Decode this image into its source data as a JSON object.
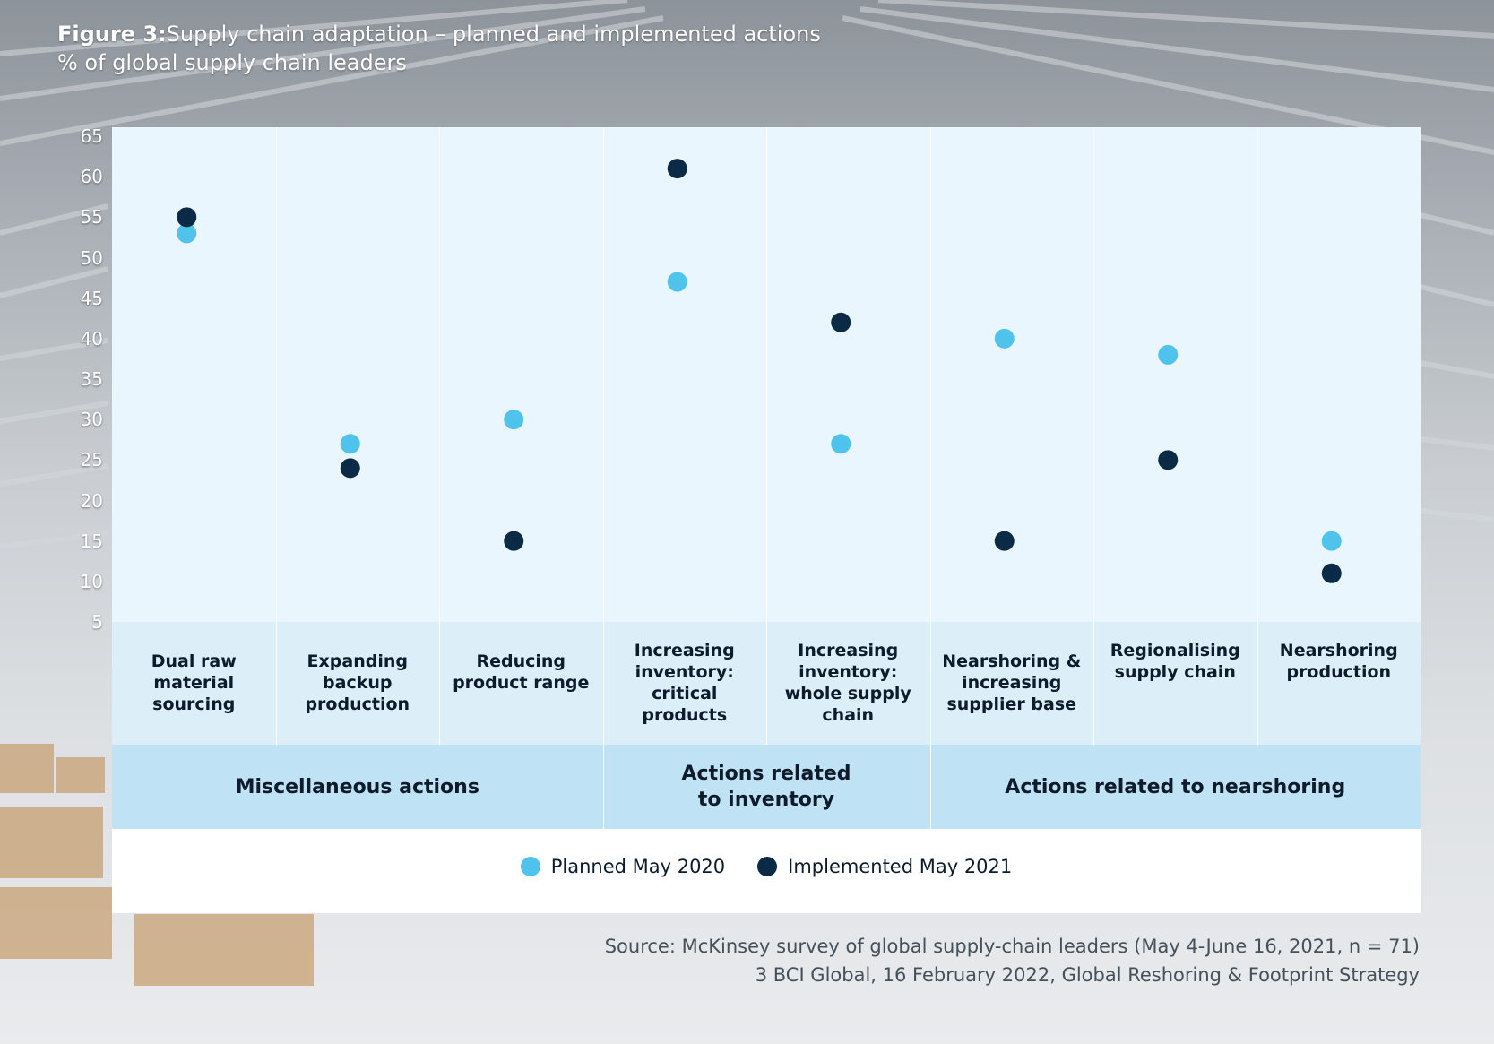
{
  "figure": {
    "label": "Figure 3:",
    "title": "Supply chain adaptation – planned and implemented actions",
    "subtitle": "% of global supply chain leaders"
  },
  "colors": {
    "planned": "#4fc3ec",
    "implemented": "#0b2a45",
    "plot_bg": "#eaf6fd",
    "label_bg": "#dceff9",
    "group_bg": "#bfe3f5"
  },
  "chart_data": {
    "type": "scatter",
    "title": "Supply chain adaptation – planned and implemented actions",
    "ylabel": "% of global supply chain leaders",
    "ylim": [
      5,
      65
    ],
    "yticks": [
      65,
      60,
      55,
      50,
      45,
      40,
      35,
      30,
      25,
      20,
      15,
      10,
      5
    ],
    "categories": [
      "Dual raw material sourcing",
      "Expanding backup production",
      "Reducing product range",
      "Increasing inventory: critical products",
      "Increasing inventory: whole supply chain",
      "Nearshoring & increasing supplier base",
      "Regionalising supply chain",
      "Nearshoring production"
    ],
    "groups": [
      {
        "label": "Miscellaneous actions",
        "span": [
          0,
          2
        ]
      },
      {
        "label": "Actions related to inventory",
        "span": [
          3,
          4
        ]
      },
      {
        "label": "Actions related to nearshoring",
        "span": [
          5,
          7
        ]
      }
    ],
    "series": [
      {
        "name": "Planned May 2020",
        "values": [
          53,
          27,
          30,
          47,
          27,
          40,
          38,
          15
        ]
      },
      {
        "name": "Implemented May 2021",
        "values": [
          55,
          24,
          15,
          61,
          42,
          15,
          25,
          11
        ]
      }
    ],
    "grid": false,
    "legend_position": "bottom-center"
  },
  "source": {
    "line1": "Source: McKinsey survey of global supply-chain leaders (May 4-June 16, 2021, n = 71)",
    "line2": "3 BCI Global, 16 February 2022, Global Reshoring & Footprint Strategy"
  }
}
